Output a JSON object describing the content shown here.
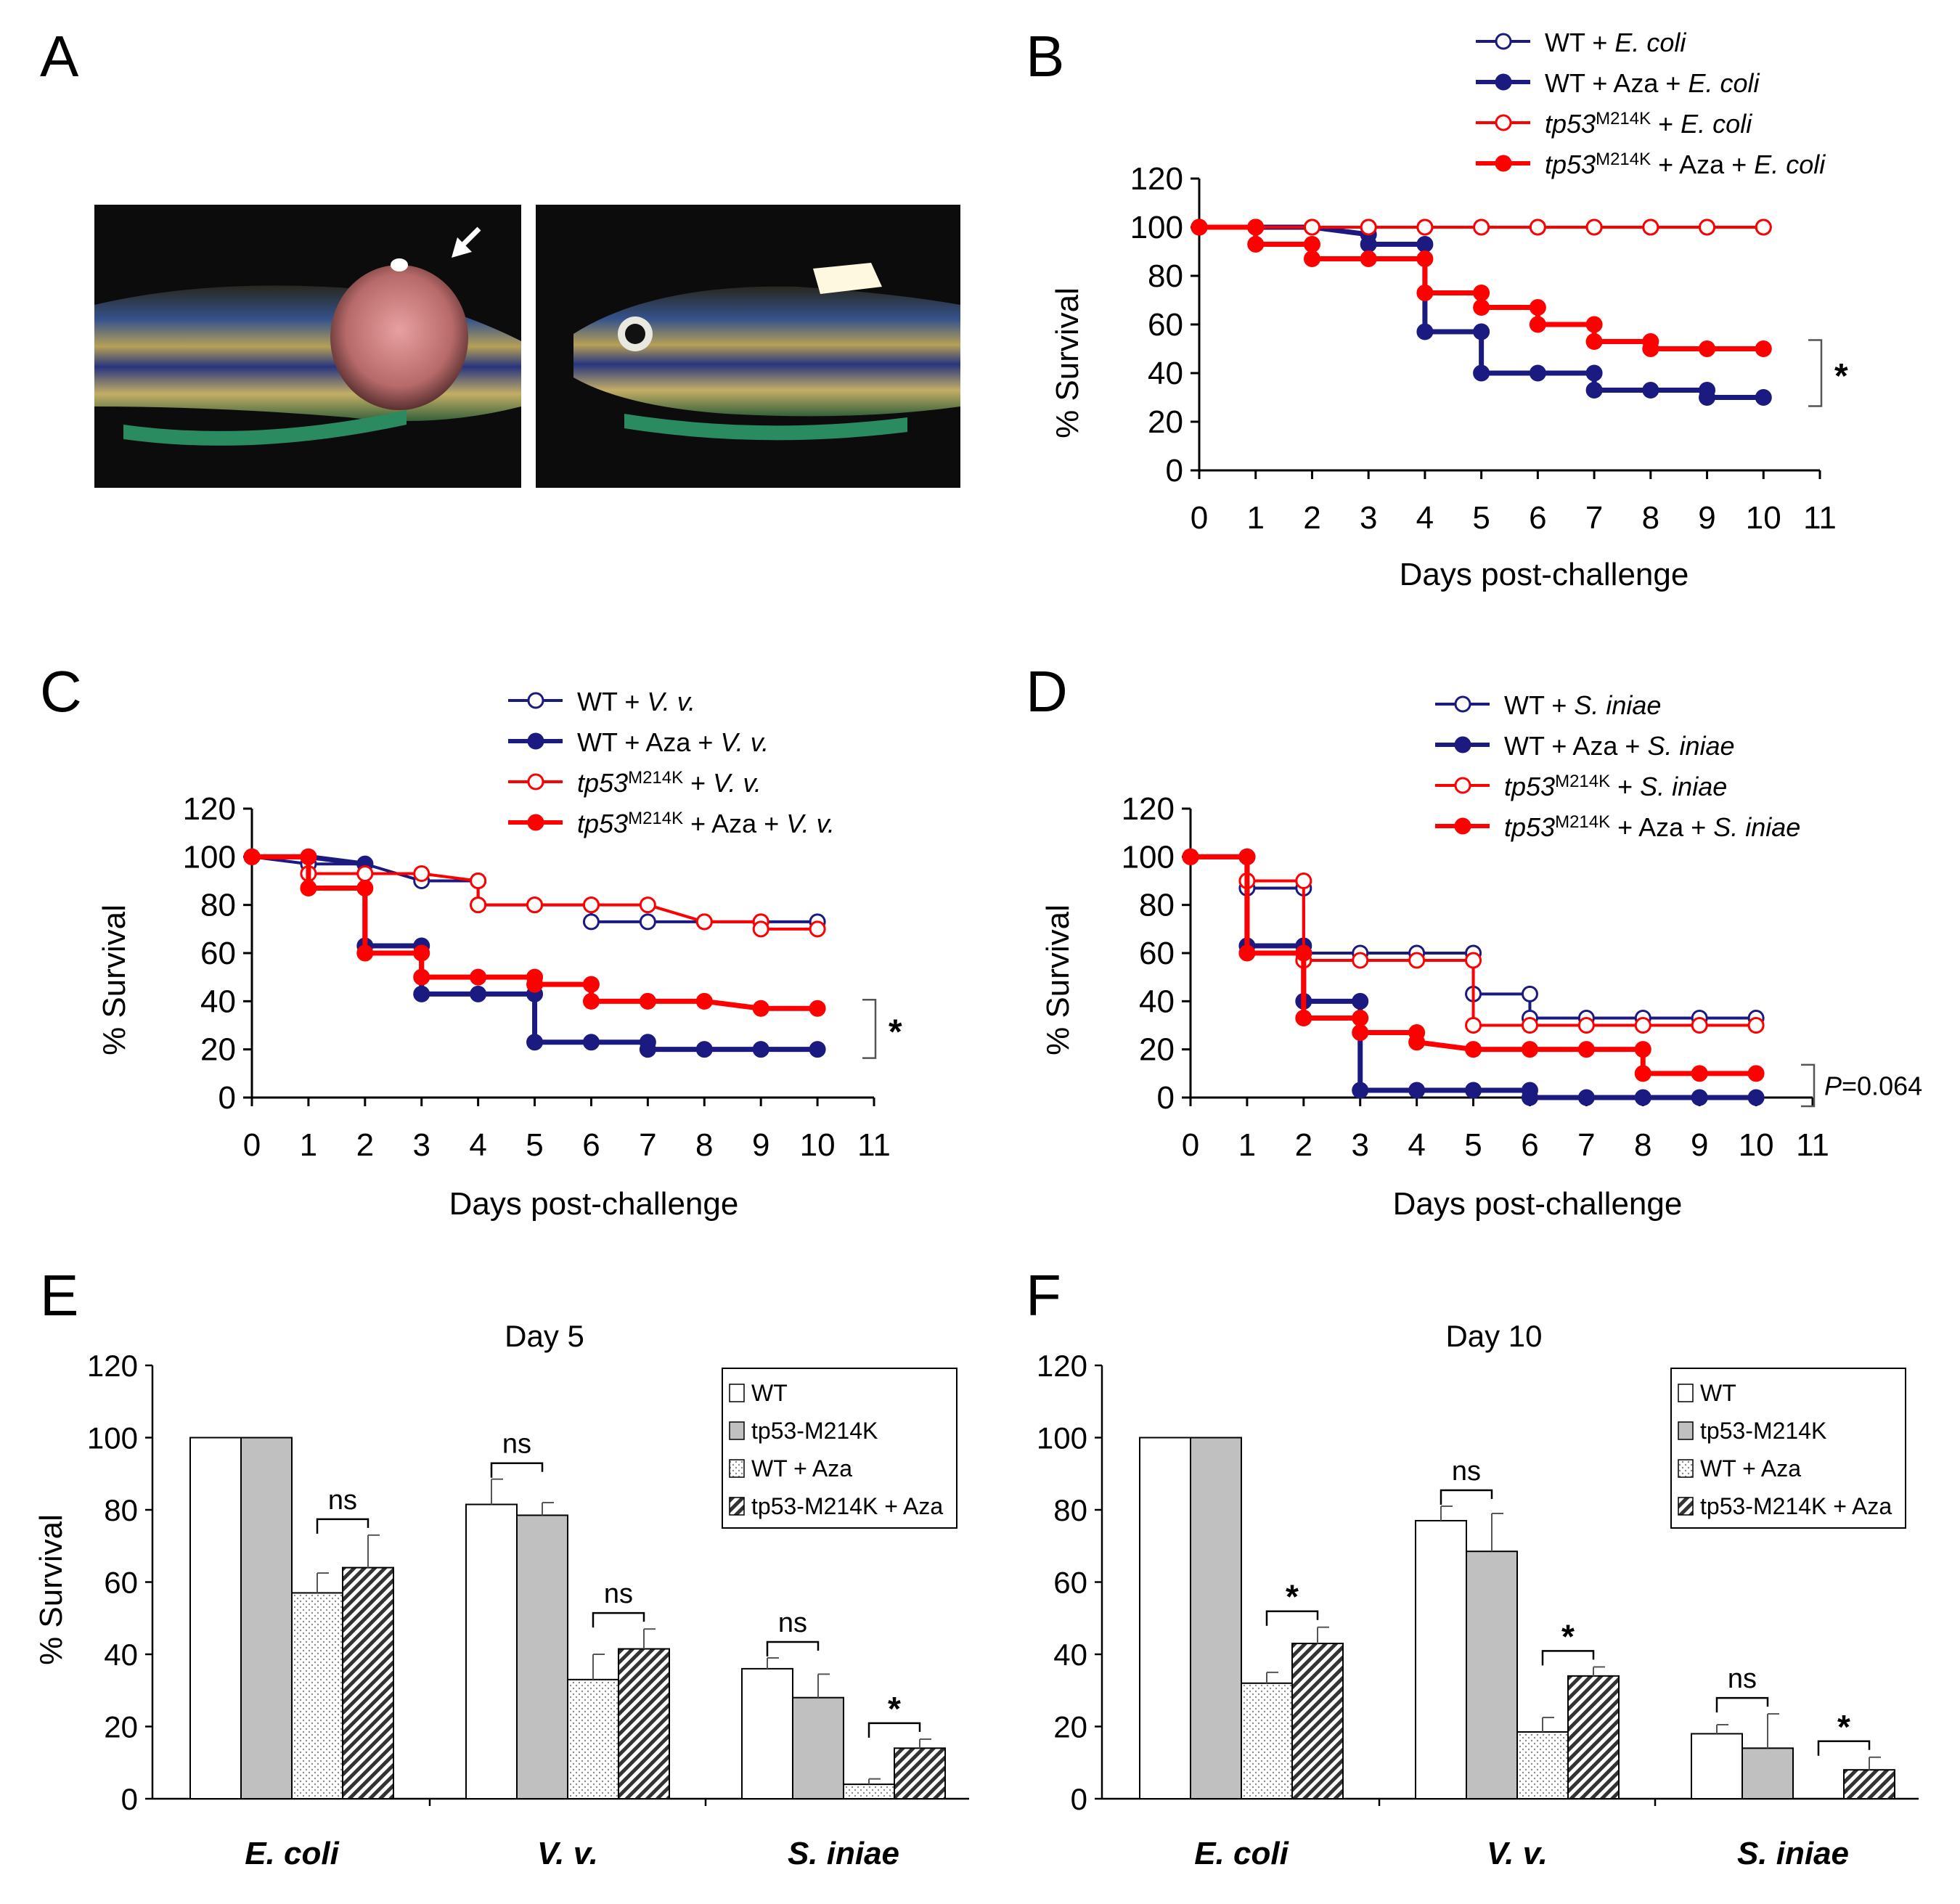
{
  "panel_letters": {
    "A": "A",
    "B": "B",
    "C": "C",
    "D": "D",
    "E": "E",
    "F": "F"
  },
  "panel_a": {
    "left_photo": "zebrafish-tumor-photo",
    "right_photo": "zebrafish-control-photo",
    "arrow_icon": "arrow-icon"
  },
  "colors": {
    "wt": "#1a1a80",
    "mut": "#ff0000",
    "axis": "#000000"
  },
  "chart_data": [
    {
      "panel": "B",
      "type": "line",
      "step": true,
      "xlabel": "Days post-challenge",
      "ylabel": "% Survival",
      "xticks": [
        0,
        1,
        2,
        3,
        4,
        5,
        6,
        7,
        8,
        9,
        10,
        11
      ],
      "yticks": [
        0,
        20,
        40,
        60,
        80,
        100,
        120
      ],
      "xlim": [
        0,
        11
      ],
      "ylim": [
        0,
        120
      ],
      "series": [
        {
          "legend_prefix": "WT",
          "legend_suffix": " + ",
          "legend_italic": "E. coli",
          "color": "wt",
          "filled": false,
          "x": [
            0,
            1,
            2,
            3,
            4,
            5,
            6,
            7,
            8,
            9,
            10
          ],
          "y": [
            100,
            100,
            100,
            100,
            100,
            100,
            100,
            100,
            100,
            100,
            100
          ]
        },
        {
          "legend_prefix": "WT",
          "legend_suffix": " + Aza + ",
          "legend_italic": "E. coli",
          "color": "wt",
          "filled": true,
          "x": [
            0,
            1,
            2,
            3,
            3,
            4,
            4,
            5,
            5,
            6,
            7,
            7,
            8,
            9,
            9,
            10
          ],
          "y": [
            100,
            100,
            100,
            97,
            93,
            93,
            57,
            57,
            40,
            40,
            40,
            33,
            33,
            33,
            30,
            30
          ]
        },
        {
          "legend_prefix": "tp53",
          "legend_sup": "M214K",
          "legend_suffix": " + ",
          "legend_italic": "E. coli",
          "color": "mut",
          "filled": false,
          "x": [
            0,
            1,
            2,
            3,
            4,
            5,
            6,
            7,
            8,
            9,
            10
          ],
          "y": [
            100,
            100,
            100,
            100,
            100,
            100,
            100,
            100,
            100,
            100,
            100
          ]
        },
        {
          "legend_prefix": "tp53",
          "legend_sup": "M214K",
          "legend_suffix": " + Aza + ",
          "legend_italic": "E. coli",
          "color": "mut",
          "filled": true,
          "x": [
            0,
            1,
            1,
            2,
            2,
            3,
            4,
            4,
            5,
            5,
            6,
            6,
            7,
            7,
            8,
            8,
            9,
            10
          ],
          "y": [
            100,
            100,
            93,
            93,
            87,
            87,
            87,
            73,
            73,
            67,
            67,
            60,
            60,
            53,
            53,
            50,
            50,
            50
          ]
        }
      ],
      "annotation": "*"
    },
    {
      "panel": "C",
      "type": "line",
      "step": true,
      "xlabel": "Days post-challenge",
      "ylabel": "% Survival",
      "xticks": [
        0,
        1,
        2,
        3,
        4,
        5,
        6,
        7,
        8,
        9,
        10,
        11
      ],
      "yticks": [
        0,
        20,
        40,
        60,
        80,
        100,
        120
      ],
      "xlim": [
        0,
        11
      ],
      "ylim": [
        0,
        120
      ],
      "series": [
        {
          "legend_prefix": "WT",
          "legend_suffix": " + ",
          "legend_italic": "V. v.",
          "color": "wt",
          "filled": false,
          "x": [
            0,
            1,
            2,
            3,
            4,
            4,
            5,
            6,
            6,
            7,
            8,
            9,
            10
          ],
          "y": [
            100,
            97,
            97,
            90,
            90,
            80,
            80,
            80,
            73,
            73,
            73,
            73,
            73
          ]
        },
        {
          "legend_prefix": "WT",
          "legend_suffix": " + Aza + ",
          "legend_italic": "V. v.",
          "color": "wt",
          "filled": true,
          "x": [
            0,
            1,
            2,
            2,
            3,
            3,
            4,
            5,
            5,
            6,
            7,
            7,
            8,
            9,
            10
          ],
          "y": [
            100,
            100,
            97,
            63,
            63,
            43,
            43,
            43,
            23,
            23,
            23,
            20,
            20,
            20,
            20
          ]
        },
        {
          "legend_prefix": "tp53",
          "legend_sup": "M214K",
          "legend_suffix": " + ",
          "legend_italic": "V. v.",
          "color": "mut",
          "filled": false,
          "x": [
            0,
            1,
            1,
            2,
            3,
            4,
            4,
            5,
            6,
            7,
            8,
            9,
            9,
            10
          ],
          "y": [
            100,
            100,
            93,
            93,
            93,
            90,
            80,
            80,
            80,
            80,
            73,
            73,
            70,
            70
          ]
        },
        {
          "legend_prefix": "tp53",
          "legend_sup": "M214K",
          "legend_suffix": " + Aza + ",
          "legend_italic": "V. v.",
          "color": "mut",
          "filled": true,
          "x": [
            0,
            1,
            1,
            2,
            2,
            3,
            3,
            4,
            5,
            5,
            6,
            6,
            7,
            8,
            9,
            10
          ],
          "y": [
            100,
            100,
            87,
            87,
            60,
            60,
            50,
            50,
            50,
            47,
            47,
            40,
            40,
            40,
            37,
            37
          ]
        }
      ],
      "annotation": "*"
    },
    {
      "panel": "D",
      "type": "line",
      "step": true,
      "xlabel": "Days post-challenge",
      "ylabel": "% Survival",
      "xticks": [
        0,
        1,
        2,
        3,
        4,
        5,
        6,
        7,
        8,
        9,
        10,
        11
      ],
      "yticks": [
        0,
        20,
        40,
        60,
        80,
        100,
        120
      ],
      "xlim": [
        0,
        11
      ],
      "ylim": [
        0,
        120
      ],
      "series": [
        {
          "legend_prefix": "WT",
          "legend_suffix": " + ",
          "legend_italic": "S. iniae",
          "color": "wt",
          "filled": false,
          "x": [
            0,
            1,
            1,
            2,
            2,
            3,
            4,
            5,
            5,
            6,
            6,
            7,
            8,
            9,
            10
          ],
          "y": [
            100,
            100,
            87,
            87,
            60,
            60,
            60,
            60,
            43,
            43,
            33,
            33,
            33,
            33,
            33
          ]
        },
        {
          "legend_prefix": "WT",
          "legend_suffix": " + Aza + ",
          "legend_italic": "S. iniae",
          "color": "wt",
          "filled": true,
          "x": [
            0,
            1,
            1,
            2,
            2,
            3,
            3,
            4,
            5,
            6,
            6,
            7,
            8,
            9,
            10
          ],
          "y": [
            100,
            100,
            63,
            63,
            40,
            40,
            3,
            3,
            3,
            3,
            0,
            0,
            0,
            0,
            0
          ]
        },
        {
          "legend_prefix": "tp53",
          "legend_sup": "M214K",
          "legend_suffix": " + ",
          "legend_italic": "S. iniae",
          "color": "mut",
          "filled": false,
          "x": [
            0,
            1,
            1,
            2,
            2,
            3,
            4,
            5,
            5,
            6,
            7,
            8,
            9,
            10
          ],
          "y": [
            100,
            100,
            90,
            90,
            57,
            57,
            57,
            57,
            30,
            30,
            30,
            30,
            30,
            30
          ]
        },
        {
          "legend_prefix": "tp53",
          "legend_sup": "M214K",
          "legend_suffix": " + Aza + ",
          "legend_italic": "S. iniae",
          "color": "mut",
          "filled": true,
          "x": [
            0,
            1,
            1,
            2,
            2,
            3,
            3,
            4,
            4,
            5,
            6,
            7,
            8,
            8,
            9,
            10
          ],
          "y": [
            100,
            100,
            60,
            60,
            33,
            33,
            27,
            27,
            23,
            20,
            20,
            20,
            20,
            10,
            10,
            10
          ]
        }
      ],
      "annotation": "P=0.064"
    },
    {
      "panel": "E",
      "type": "bar",
      "title": "Day 5",
      "ylabel": "% Survival",
      "yticks": [
        0,
        20,
        40,
        60,
        80,
        100,
        120
      ],
      "ylim": [
        0,
        120
      ],
      "categories": [
        "E. coli",
        "V. v.",
        "S. iniae"
      ],
      "legend": [
        "WT",
        "tp53-M214K",
        "WT + Aza",
        "tp53-M214K + Aza"
      ],
      "series": [
        {
          "name": "WT",
          "style": "white",
          "values": [
            100,
            81.5,
            36
          ],
          "errors": [
            0,
            7,
            3
          ]
        },
        {
          "name": "tp53-M214K",
          "style": "gray",
          "values": [
            100,
            78.5,
            28
          ],
          "errors": [
            0,
            3.5,
            6.5
          ]
        },
        {
          "name": "WT + Aza",
          "style": "dots",
          "values": [
            57,
            33,
            4
          ],
          "errors": [
            5.5,
            7,
            1.5
          ]
        },
        {
          "name": "tp53-M214K + Aza",
          "style": "hatch",
          "values": [
            64,
            41.5,
            14
          ],
          "errors": [
            9,
            5.5,
            2.5
          ]
        }
      ],
      "significance": [
        {
          "category": 0,
          "pair": [
            2,
            3
          ],
          "label": "ns"
        },
        {
          "category": 1,
          "pair": [
            0,
            1
          ],
          "label": "ns"
        },
        {
          "category": 1,
          "pair": [
            2,
            3
          ],
          "label": "ns"
        },
        {
          "category": 2,
          "pair": [
            0,
            1
          ],
          "label": "ns"
        },
        {
          "category": 2,
          "pair": [
            2,
            3
          ],
          "label": "*"
        }
      ]
    },
    {
      "panel": "F",
      "type": "bar",
      "title": "Day 10",
      "ylabel": "",
      "yticks": [
        0,
        20,
        40,
        60,
        80,
        100,
        120
      ],
      "ylim": [
        0,
        120
      ],
      "categories": [
        "E. coli",
        "V. v.",
        "S. iniae"
      ],
      "legend": [
        "WT",
        "tp53-M214K",
        "WT + Aza",
        "tp53-M214K + Aza"
      ],
      "series": [
        {
          "name": "WT",
          "style": "white",
          "values": [
            100,
            77,
            18
          ],
          "errors": [
            0,
            4,
            2.5
          ]
        },
        {
          "name": "tp53-M214K",
          "style": "gray",
          "values": [
            100,
            68.5,
            14
          ],
          "errors": [
            0,
            10.5,
            9.5
          ]
        },
        {
          "name": "WT + Aza",
          "style": "dots",
          "values": [
            32,
            18.5,
            0
          ],
          "errors": [
            3,
            4,
            0
          ]
        },
        {
          "name": "tp53-M214K + Aza",
          "style": "hatch",
          "values": [
            43,
            34,
            8
          ],
          "errors": [
            4.5,
            2.5,
            3.5
          ]
        }
      ],
      "significance": [
        {
          "category": 0,
          "pair": [
            2,
            3
          ],
          "label": "*"
        },
        {
          "category": 1,
          "pair": [
            0,
            1
          ],
          "label": "ns"
        },
        {
          "category": 1,
          "pair": [
            2,
            3
          ],
          "label": "*"
        },
        {
          "category": 2,
          "pair": [
            0,
            1
          ],
          "label": "ns"
        },
        {
          "category": 2,
          "pair": [
            2,
            3
          ],
          "label": "*"
        }
      ]
    }
  ]
}
